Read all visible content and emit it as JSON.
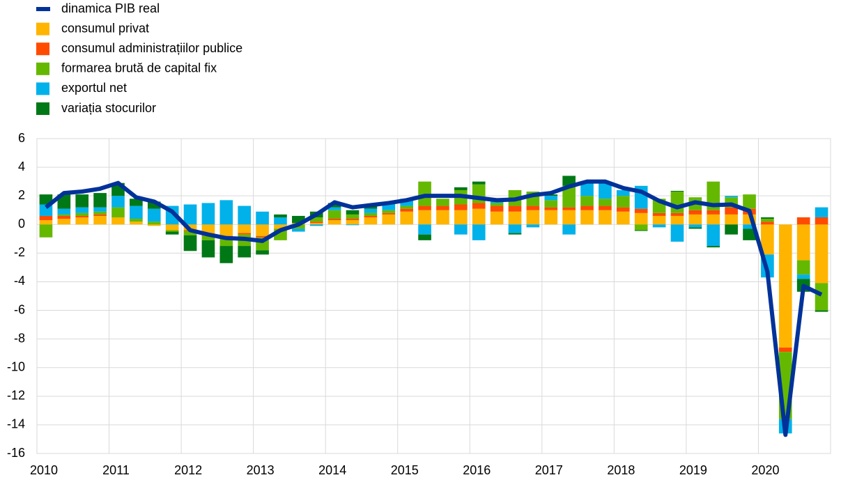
{
  "chart_data": {
    "type": "bar",
    "categories": [
      "2010",
      null,
      null,
      null,
      "2011",
      null,
      null,
      null,
      "2012",
      null,
      null,
      null,
      "2013",
      null,
      null,
      null,
      "2014",
      null,
      null,
      null,
      "2015",
      null,
      null,
      null,
      "2016",
      null,
      null,
      null,
      "2017",
      null,
      null,
      null,
      "2018",
      null,
      null,
      null,
      "2019",
      null,
      null,
      null,
      "2020",
      null,
      null,
      null
    ],
    "ylim": [
      -16,
      6
    ],
    "yticks": [
      -16,
      -14,
      -12,
      -10,
      -8,
      -6,
      -4,
      -2,
      0,
      2,
      4,
      6
    ],
    "grid": true,
    "legend": "top-left",
    "series": [
      {
        "name": "dinamica PIB real",
        "type": "line",
        "color": "#003299",
        "values": [
          1.2,
          2.2,
          2.3,
          2.5,
          2.9,
          1.9,
          1.6,
          0.9,
          -0.4,
          -0.7,
          -0.95,
          -1.0,
          -1.15,
          -0.4,
          0.0,
          0.7,
          1.55,
          1.2,
          1.35,
          1.5,
          1.7,
          2.0,
          2.0,
          2.0,
          1.85,
          1.7,
          1.75,
          2.05,
          2.2,
          2.65,
          3.0,
          3.0,
          2.55,
          2.3,
          1.65,
          1.2,
          1.55,
          1.35,
          1.4,
          0.95,
          -3.3,
          -14.7,
          -4.3,
          -4.9
        ]
      },
      {
        "name": "consumul privat",
        "color": "#ffb400",
        "values": [
          0.3,
          0.4,
          0.5,
          0.6,
          0.5,
          0.2,
          -0.1,
          -0.4,
          -0.4,
          -0.7,
          -0.8,
          -0.6,
          -0.8,
          -0.3,
          0.1,
          0.1,
          0.3,
          0.3,
          0.5,
          0.7,
          0.9,
          1.0,
          1.0,
          1.0,
          1.1,
          0.9,
          0.9,
          1.0,
          1.0,
          1.0,
          1.0,
          1.0,
          0.9,
          0.8,
          0.6,
          0.6,
          0.7,
          0.7,
          0.7,
          0.7,
          -2.1,
          -8.6,
          -2.5,
          -4.1
        ]
      },
      {
        "name": "consumul administrațiilor publice",
        "color": "#ff4b00",
        "values": [
          0.3,
          0.2,
          0.1,
          0.1,
          0.0,
          0.0,
          0.0,
          0.0,
          -0.05,
          -0.1,
          -0.1,
          -0.1,
          -0.1,
          0.0,
          0.0,
          0.1,
          0.1,
          0.1,
          0.1,
          0.1,
          0.2,
          0.3,
          0.3,
          0.4,
          0.4,
          0.4,
          0.4,
          0.3,
          0.2,
          0.2,
          0.3,
          0.3,
          0.3,
          0.3,
          0.2,
          0.2,
          0.3,
          0.3,
          0.5,
          0.4,
          0.2,
          -0.3,
          0.5,
          0.5
        ]
      },
      {
        "name": "formarea brută de capital fix",
        "color": "#65b800",
        "values": [
          -0.9,
          0.1,
          0.2,
          0.2,
          0.7,
          0.2,
          0.2,
          -0.1,
          -0.3,
          -0.3,
          -0.6,
          -0.8,
          -0.9,
          -0.8,
          -0.3,
          0.3,
          0.6,
          0.3,
          0.2,
          0.2,
          0.2,
          1.7,
          0.5,
          1.0,
          1.3,
          0.2,
          1.1,
          1.0,
          0.5,
          1.5,
          0.7,
          0.5,
          0.8,
          -0.4,
          1.0,
          1.5,
          0.9,
          2.0,
          0.7,
          1.0,
          0.2,
          -4.7,
          -1.0,
          -1.9
        ]
      },
      {
        "name": "exportul net",
        "color": "#00b1ea",
        "values": [
          0.8,
          0.4,
          0.4,
          0.3,
          0.8,
          0.9,
          0.9,
          1.3,
          1.4,
          1.5,
          1.7,
          1.3,
          0.9,
          0.5,
          -0.2,
          -0.1,
          0.2,
          -0.05,
          0.3,
          0.5,
          0.5,
          -0.7,
          0.0,
          -0.7,
          -1.1,
          0.1,
          -0.6,
          -0.2,
          0.3,
          -0.7,
          1.0,
          1.2,
          0.4,
          1.6,
          -0.2,
          -1.2,
          -0.2,
          -1.5,
          0.1,
          -0.3,
          -1.6,
          -1.0,
          -0.3,
          0.7
        ]
      },
      {
        "name": "variația stocurilor",
        "color": "#007816",
        "values": [
          0.7,
          1.0,
          0.9,
          1.0,
          0.9,
          0.5,
          0.5,
          -0.2,
          -1.1,
          -1.2,
          -1.2,
          -0.8,
          -0.3,
          0.2,
          0.5,
          0.4,
          0.3,
          0.3,
          0.2,
          0.0,
          0.0,
          -0.4,
          0.0,
          0.2,
          0.2,
          0.0,
          -0.1,
          0.0,
          0.1,
          0.7,
          0.0,
          0.0,
          0.0,
          -0.05,
          0.0,
          0.05,
          -0.1,
          -0.1,
          -0.7,
          -0.8,
          0.1,
          0.0,
          -0.9,
          -0.1
        ]
      }
    ]
  }
}
